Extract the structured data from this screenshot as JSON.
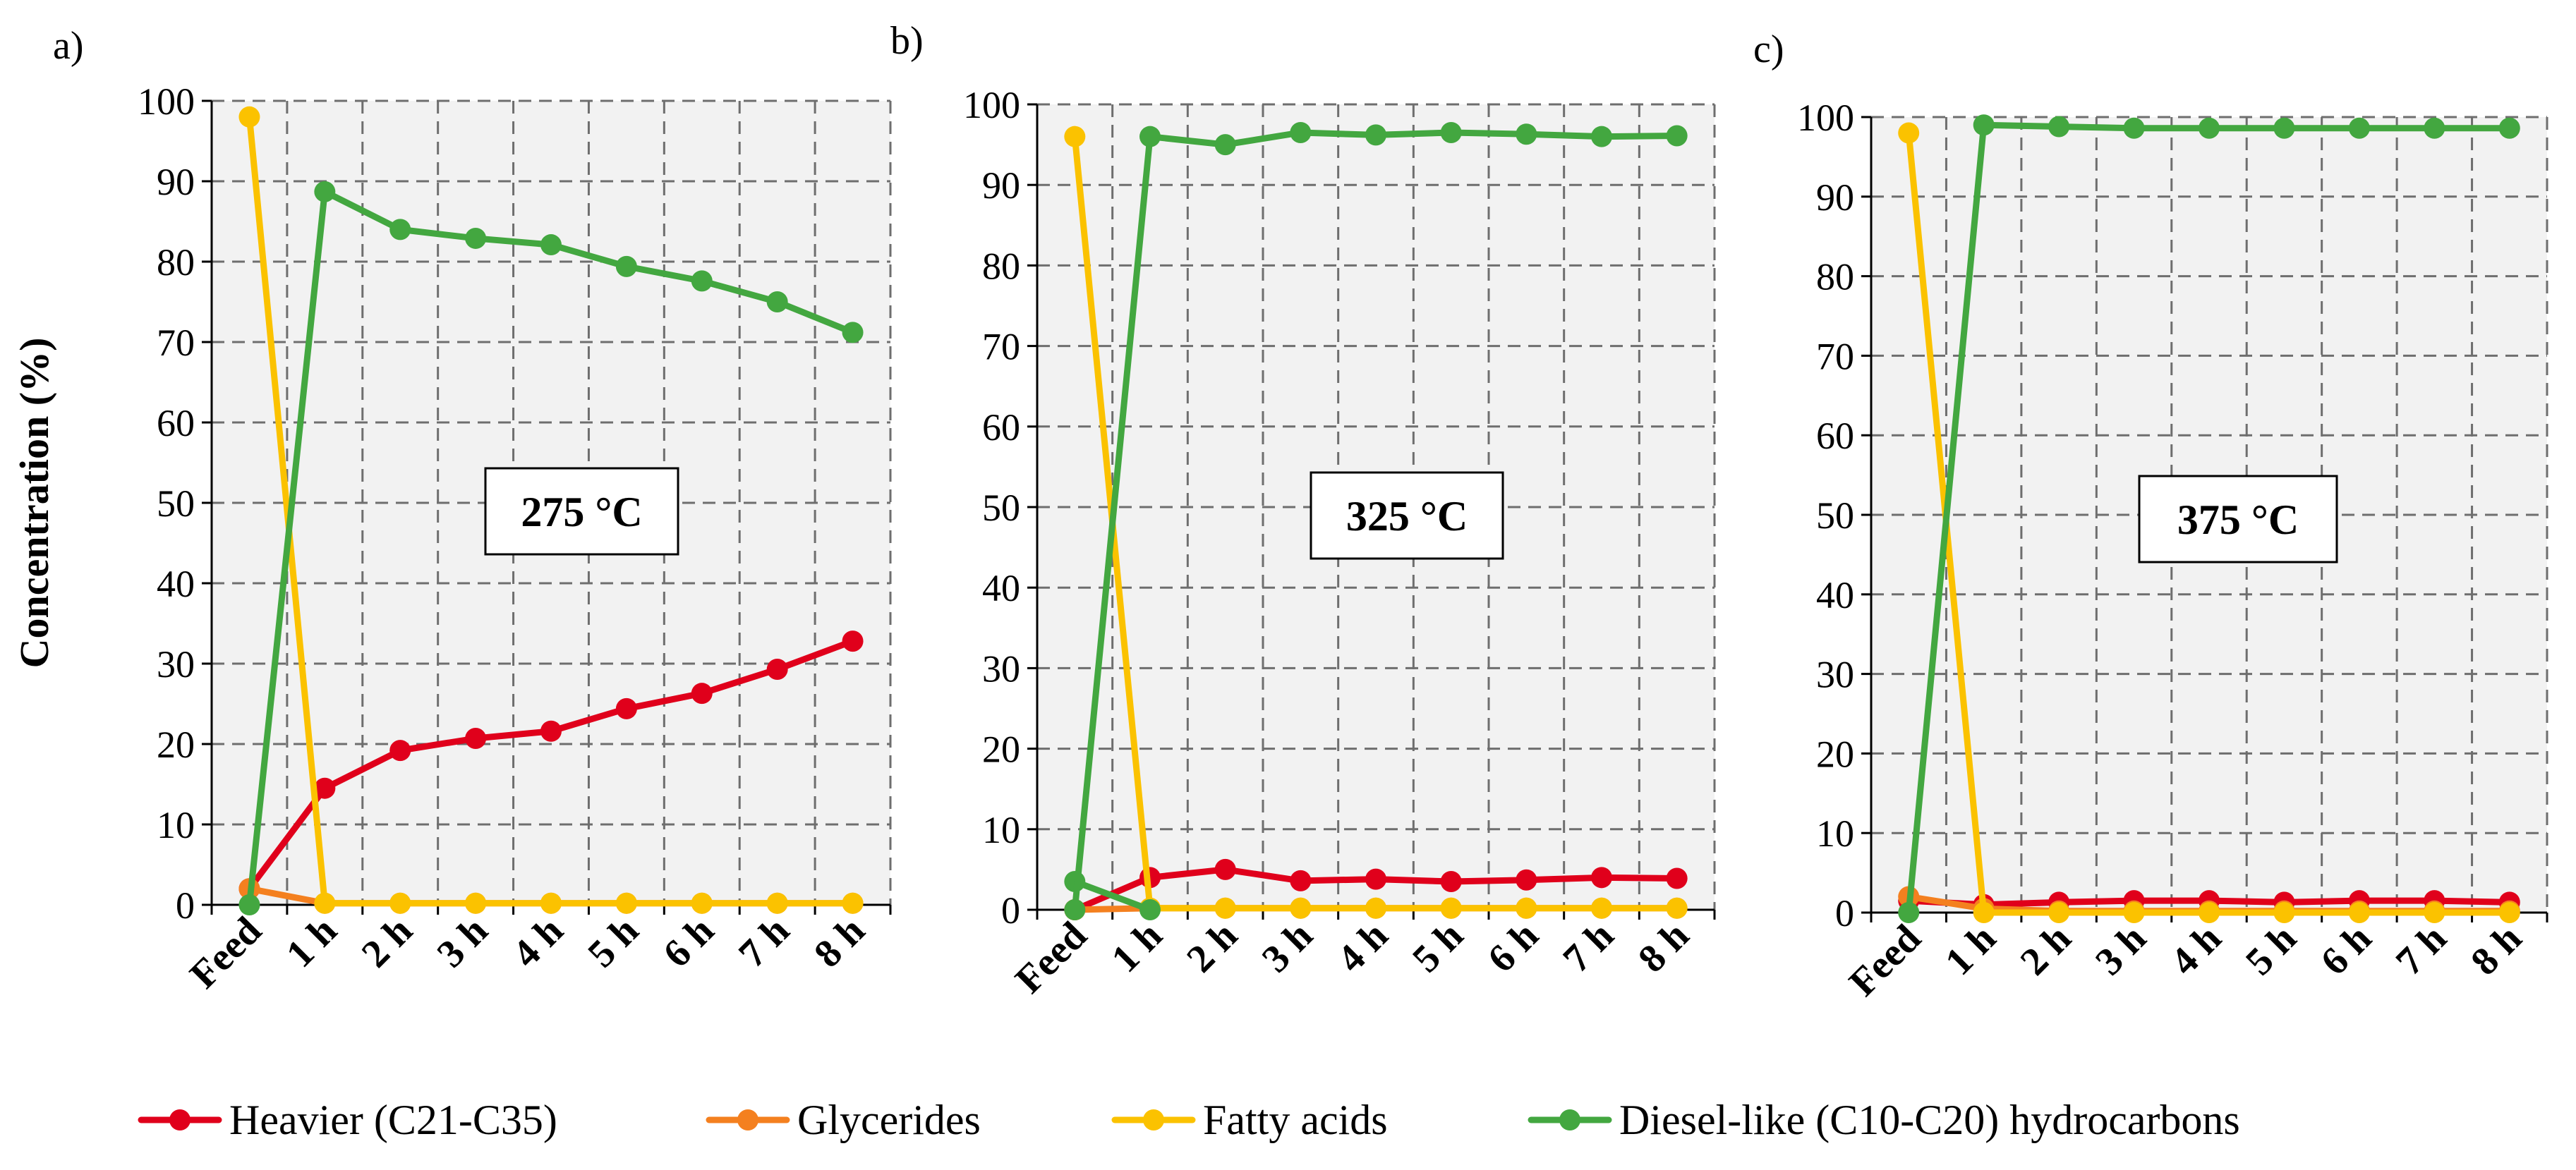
{
  "chart_data": [
    {
      "type": "line",
      "panel_label": "a)",
      "annotation": "275 °C",
      "ylabel": "Concentration (%)",
      "xlabel": "",
      "categories": [
        "Feed",
        "1 h",
        "2 h",
        "3 h",
        "4 h",
        "5 h",
        "6 h",
        "7 h",
        "8 h"
      ],
      "ylim": [
        0,
        100
      ],
      "yticks": [
        "0",
        "10",
        "20",
        "30",
        "40",
        "50",
        "60",
        "70",
        "80",
        "90",
        "100"
      ],
      "grid": true,
      "series": [
        {
          "name": "Heavier (C21-C35)",
          "color": "#e0001b",
          "values": [
            2,
            14.5,
            19.2,
            20.7,
            21.6,
            24.4,
            26.3,
            29.3,
            32.8
          ]
        },
        {
          "name": "Glycerides",
          "color": "#f4801f",
          "values": [
            2,
            0.2,
            0.2,
            0.2,
            0.2,
            0.2,
            0.2,
            0.2,
            0.2
          ]
        },
        {
          "name": "Fatty acids",
          "color": "#fbc200",
          "values": [
            98,
            0.2,
            0.2,
            0.2,
            0.2,
            0.2,
            0.2,
            0.2,
            0.2
          ]
        },
        {
          "name": "Diesel-like (C10-C20) hydrocarbons",
          "color": "#43a740",
          "values": [
            0,
            88.7,
            84,
            82.9,
            82.1,
            79.4,
            77.6,
            75,
            71.2
          ]
        }
      ]
    },
    {
      "type": "line",
      "panel_label": "b)",
      "annotation": "325 °C",
      "ylabel": "",
      "xlabel": "",
      "categories": [
        "Feed",
        "1 h",
        "2 h",
        "3 h",
        "4 h",
        "5 h",
        "6 h",
        "7 h",
        "8 h"
      ],
      "ylim": [
        0,
        100
      ],
      "yticks": [
        "0",
        "10",
        "20",
        "30",
        "40",
        "50",
        "60",
        "70",
        "80",
        "90",
        "100"
      ],
      "grid": true,
      "series": [
        {
          "name": "Heavier (C21-C35)",
          "color": "#e0001b",
          "values": [
            0,
            4,
            5,
            3.6,
            3.8,
            3.5,
            3.7,
            4,
            3.9
          ]
        },
        {
          "name": "Glycerides",
          "color": "#f4801f",
          "values": [
            0,
            0.2,
            0.2,
            0.2,
            0.2,
            0.2,
            0.2,
            0.2,
            0.2
          ]
        },
        {
          "name": "Fatty acids",
          "color": "#fbc200",
          "values": [
            96,
            0.2,
            0.2,
            0.2,
            0.2,
            0.2,
            0.2,
            0.2,
            0.2
          ]
        },
        {
          "name": "Diesel-like (C10-C20) hydrocarbons",
          "color": "#43a740",
          "values": [
            3.5,
            0,
            null,
            null,
            null,
            null,
            null,
            null,
            null
          ],
          "values_main": [
            0,
            96,
            95,
            96.5,
            96.2,
            96.5,
            96.3,
            96,
            96.1
          ]
        }
      ]
    },
    {
      "type": "line",
      "panel_label": "c)",
      "annotation": "375 °C",
      "ylabel": "",
      "xlabel": "",
      "categories": [
        "Feed",
        "1 h",
        "2 h",
        "3 h",
        "4 h",
        "5 h",
        "6 h",
        "7 h",
        "8 h"
      ],
      "ylim": [
        0,
        100
      ],
      "yticks": [
        "0",
        "10",
        "20",
        "30",
        "40",
        "50",
        "60",
        "70",
        "80",
        "90",
        "100"
      ],
      "grid": true,
      "series": [
        {
          "name": "Heavier (C21-C35)",
          "color": "#e0001b",
          "values": [
            1.5,
            1,
            1.3,
            1.5,
            1.5,
            1.3,
            1.5,
            1.5,
            1.3
          ]
        },
        {
          "name": "Glycerides",
          "color": "#f4801f",
          "values": [
            2,
            0.5,
            0.2,
            0.2,
            0.2,
            0.2,
            0.2,
            0.2,
            0.2
          ]
        },
        {
          "name": "Fatty acids",
          "color": "#fbc200",
          "values": [
            98,
            0,
            0,
            0,
            0,
            0,
            0,
            0,
            0
          ]
        },
        {
          "name": "Diesel-like (C10-C20) hydrocarbons",
          "color": "#43a740",
          "values": [
            0,
            99,
            98.8,
            98.6,
            98.6,
            98.6,
            98.6,
            98.6,
            98.6
          ]
        }
      ]
    }
  ],
  "legend": {
    "position": "bottom",
    "items": [
      {
        "label": "Heavier (C21-C35)",
        "color": "#e0001b"
      },
      {
        "label": "Glycerides",
        "color": "#f4801f"
      },
      {
        "label": "Fatty acids",
        "color": "#fbc200"
      },
      {
        "label": "Diesel-like (C10-C20) hydrocarbons",
        "color": "#43a740"
      }
    ]
  }
}
